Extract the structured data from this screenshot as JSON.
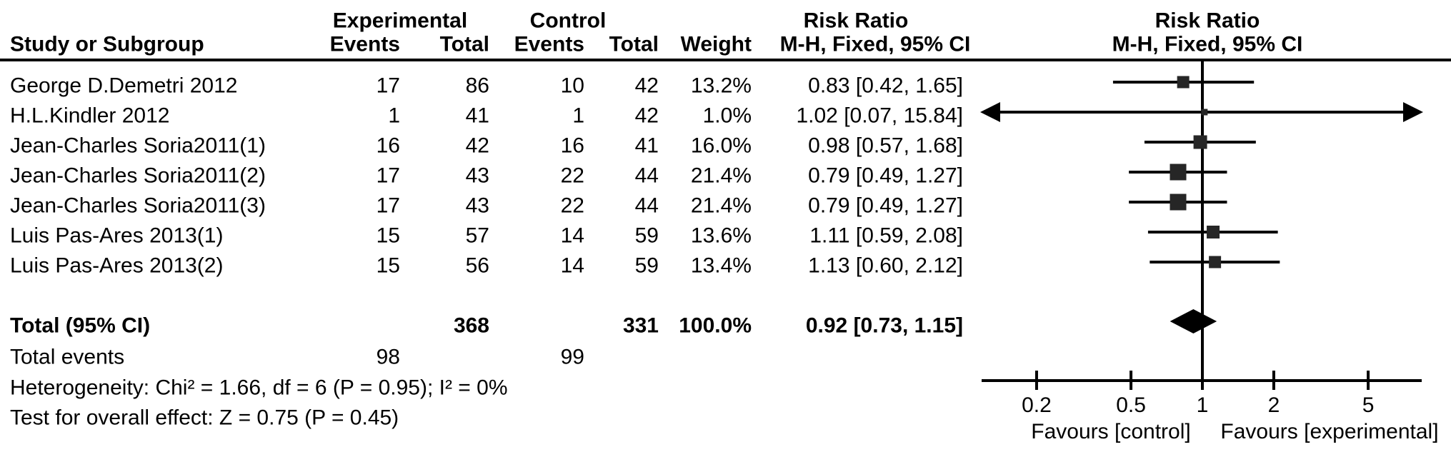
{
  "header": {
    "group_experimental": "Experimental",
    "group_control": "Control",
    "study": "Study or Subgroup",
    "events": "Events",
    "total": "Total",
    "weight": "Weight",
    "risk_ratio_title": "Risk Ratio",
    "risk_ratio_sub": "M-H, Fixed, 95% CI",
    "plot_risk_ratio_title": "Risk Ratio",
    "plot_risk_ratio_sub": "M-H, Fixed, 95% CI"
  },
  "table": {
    "rows": [
      {
        "study": "George D.Demetri 2012",
        "events1": "17",
        "total1": "86",
        "events2": "10",
        "total2": "42",
        "weight": "13.2%",
        "rr_text": "0.83 [0.42, 1.65]"
      },
      {
        "study": "H.L.Kindler 2012",
        "events1": "1",
        "total1": "41",
        "events2": "1",
        "total2": "42",
        "weight": "1.0%",
        "rr_text": "1.02 [0.07, 15.84]"
      },
      {
        "study": "Jean-Charles Soria2011(1)",
        "events1": "16",
        "total1": "42",
        "events2": "16",
        "total2": "41",
        "weight": "16.0%",
        "rr_text": "0.98 [0.57, 1.68]"
      },
      {
        "study": "Jean-Charles Soria2011(2)",
        "events1": "17",
        "total1": "43",
        "events2": "22",
        "total2": "44",
        "weight": "21.4%",
        "rr_text": "0.79 [0.49, 1.27]"
      },
      {
        "study": "Jean-Charles Soria2011(3)",
        "events1": "17",
        "total1": "43",
        "events2": "22",
        "total2": "44",
        "weight": "21.4%",
        "rr_text": "0.79 [0.49, 1.27]"
      },
      {
        "study": "Luis Pas-Ares 2013(1)",
        "events1": "15",
        "total1": "57",
        "events2": "14",
        "total2": "59",
        "weight": "13.6%",
        "rr_text": "1.11 [0.59, 2.08]"
      },
      {
        "study": "Luis Pas-Ares 2013(2)",
        "events1": "15",
        "total1": "56",
        "events2": "14",
        "total2": "59",
        "weight": "13.4%",
        "rr_text": "1.13 [0.60, 2.12]"
      }
    ],
    "total_row": {
      "label": "Total (95% CI)",
      "total1": "368",
      "total2": "331",
      "weight": "100.0%",
      "rr_text": "0.92 [0.73, 1.15]"
    },
    "total_events": {
      "label": "Total events",
      "events1": "98",
      "events2": "99"
    },
    "heterogeneity": "Heterogeneity: Chi² = 1.66, df = 6 (P = 0.95); I² = 0%",
    "overall_effect": "Test for overall effect: Z = 0.75 (P = 0.45)"
  },
  "chart_data": {
    "type": "scatter",
    "subtype": "forest-plot",
    "title": "Risk Ratio  M-H, Fixed, 95% CI",
    "x_scale": "log10",
    "x_ticks": [
      0.2,
      0.5,
      1,
      2,
      5
    ],
    "x_visible_range": [
      0.12,
      8.5
    ],
    "null_line": 1,
    "studies": [
      {
        "name": "George D.Demetri 2012",
        "rr": 0.83,
        "ci_low": 0.42,
        "ci_high": 1.65,
        "weight_pct": 13.2
      },
      {
        "name": "H.L.Kindler 2012",
        "rr": 1.02,
        "ci_low": 0.07,
        "ci_high": 15.84,
        "weight_pct": 1.0
      },
      {
        "name": "Jean-Charles Soria2011(1)",
        "rr": 0.98,
        "ci_low": 0.57,
        "ci_high": 1.68,
        "weight_pct": 16.0
      },
      {
        "name": "Jean-Charles Soria2011(2)",
        "rr": 0.79,
        "ci_low": 0.49,
        "ci_high": 1.27,
        "weight_pct": 21.4
      },
      {
        "name": "Jean-Charles Soria2011(3)",
        "rr": 0.79,
        "ci_low": 0.49,
        "ci_high": 1.27,
        "weight_pct": 21.4
      },
      {
        "name": "Luis Pas-Ares 2013(1)",
        "rr": 1.11,
        "ci_low": 0.59,
        "ci_high": 2.08,
        "weight_pct": 13.6
      },
      {
        "name": "Luis Pas-Ares 2013(2)",
        "rr": 1.13,
        "ci_low": 0.6,
        "ci_high": 2.12,
        "weight_pct": 13.4
      }
    ],
    "total": {
      "rr": 0.92,
      "ci_low": 0.73,
      "ci_high": 1.15
    },
    "favours_left": "Favours [control]",
    "favours_right": "Favours [experimental]",
    "marker_color": "#262626",
    "line_color": "#000000"
  }
}
